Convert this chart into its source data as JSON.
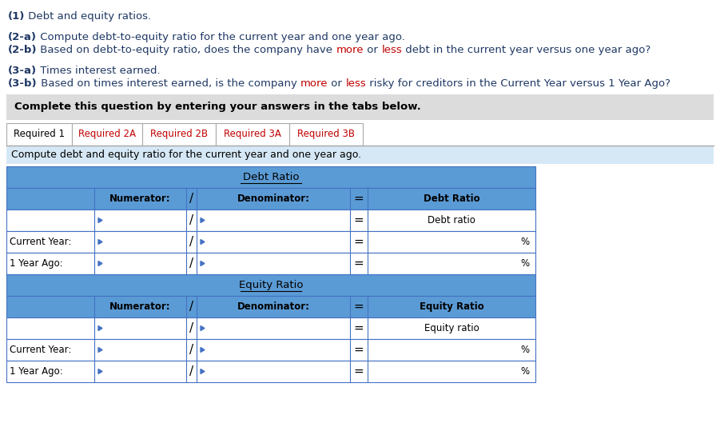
{
  "title_text": [
    {
      "text": "(1)",
      "bold": true,
      "color": "#1f3864"
    },
    {
      "text": " Debt and equity ratios.",
      "bold": false,
      "color": "#1f3864"
    }
  ],
  "line2a": [
    {
      "text": "(2-a)",
      "bold": true,
      "color": "#1f3864"
    },
    {
      "text": " Compute debt-to-equity ratio for the current year and one year ago.",
      "bold": false,
      "color": "#1f3864"
    }
  ],
  "line2b": [
    {
      "text": "(2-b)",
      "bold": true,
      "color": "#1f3864"
    },
    {
      "text": " Based on debt-to-equity ratio, does the company have ",
      "bold": false,
      "color": "#1f3864"
    },
    {
      "text": "more",
      "bold": false,
      "color": "#c00000"
    },
    {
      "text": " or ",
      "bold": false,
      "color": "#1f3864"
    },
    {
      "text": "less",
      "bold": false,
      "color": "#c00000"
    },
    {
      "text": " debt in the current year versus one year ago?",
      "bold": false,
      "color": "#1f3864"
    }
  ],
  "line3a": [
    {
      "text": "(3-a)",
      "bold": true,
      "color": "#1f3864"
    },
    {
      "text": " Times interest earned.",
      "bold": false,
      "color": "#1f3864"
    }
  ],
  "line3b": [
    {
      "text": "(3-b)",
      "bold": true,
      "color": "#1f3864"
    },
    {
      "text": " Based on times interest earned, is the company ",
      "bold": false,
      "color": "#1f3864"
    },
    {
      "text": "more",
      "bold": false,
      "color": "#c00000"
    },
    {
      "text": " or ",
      "bold": false,
      "color": "#1f3864"
    },
    {
      "text": "less",
      "bold": false,
      "color": "#c00000"
    },
    {
      "text": " risky for creditors in the Current Year versus 1 Year Ago?",
      "bold": false,
      "color": "#1f3864"
    }
  ],
  "complete_text": "Complete this question by entering your answers in the tabs below.",
  "tabs": [
    "Required 1",
    "Required 2A",
    "Required 2B",
    "Required 3A",
    "Required 3B"
  ],
  "instruction_text": "Compute debt and equity ratio for the current year and one year ago.",
  "bg_color": "#ffffff",
  "gray_bg": "#dcdcdc",
  "light_blue_bg": "#d6e8f5",
  "blue_header": "#5b9bd5",
  "table_border": "#4472c4",
  "tab_border": "#aaaaaa",
  "red_color": "#c00000",
  "dark_blue": "#1f3864"
}
